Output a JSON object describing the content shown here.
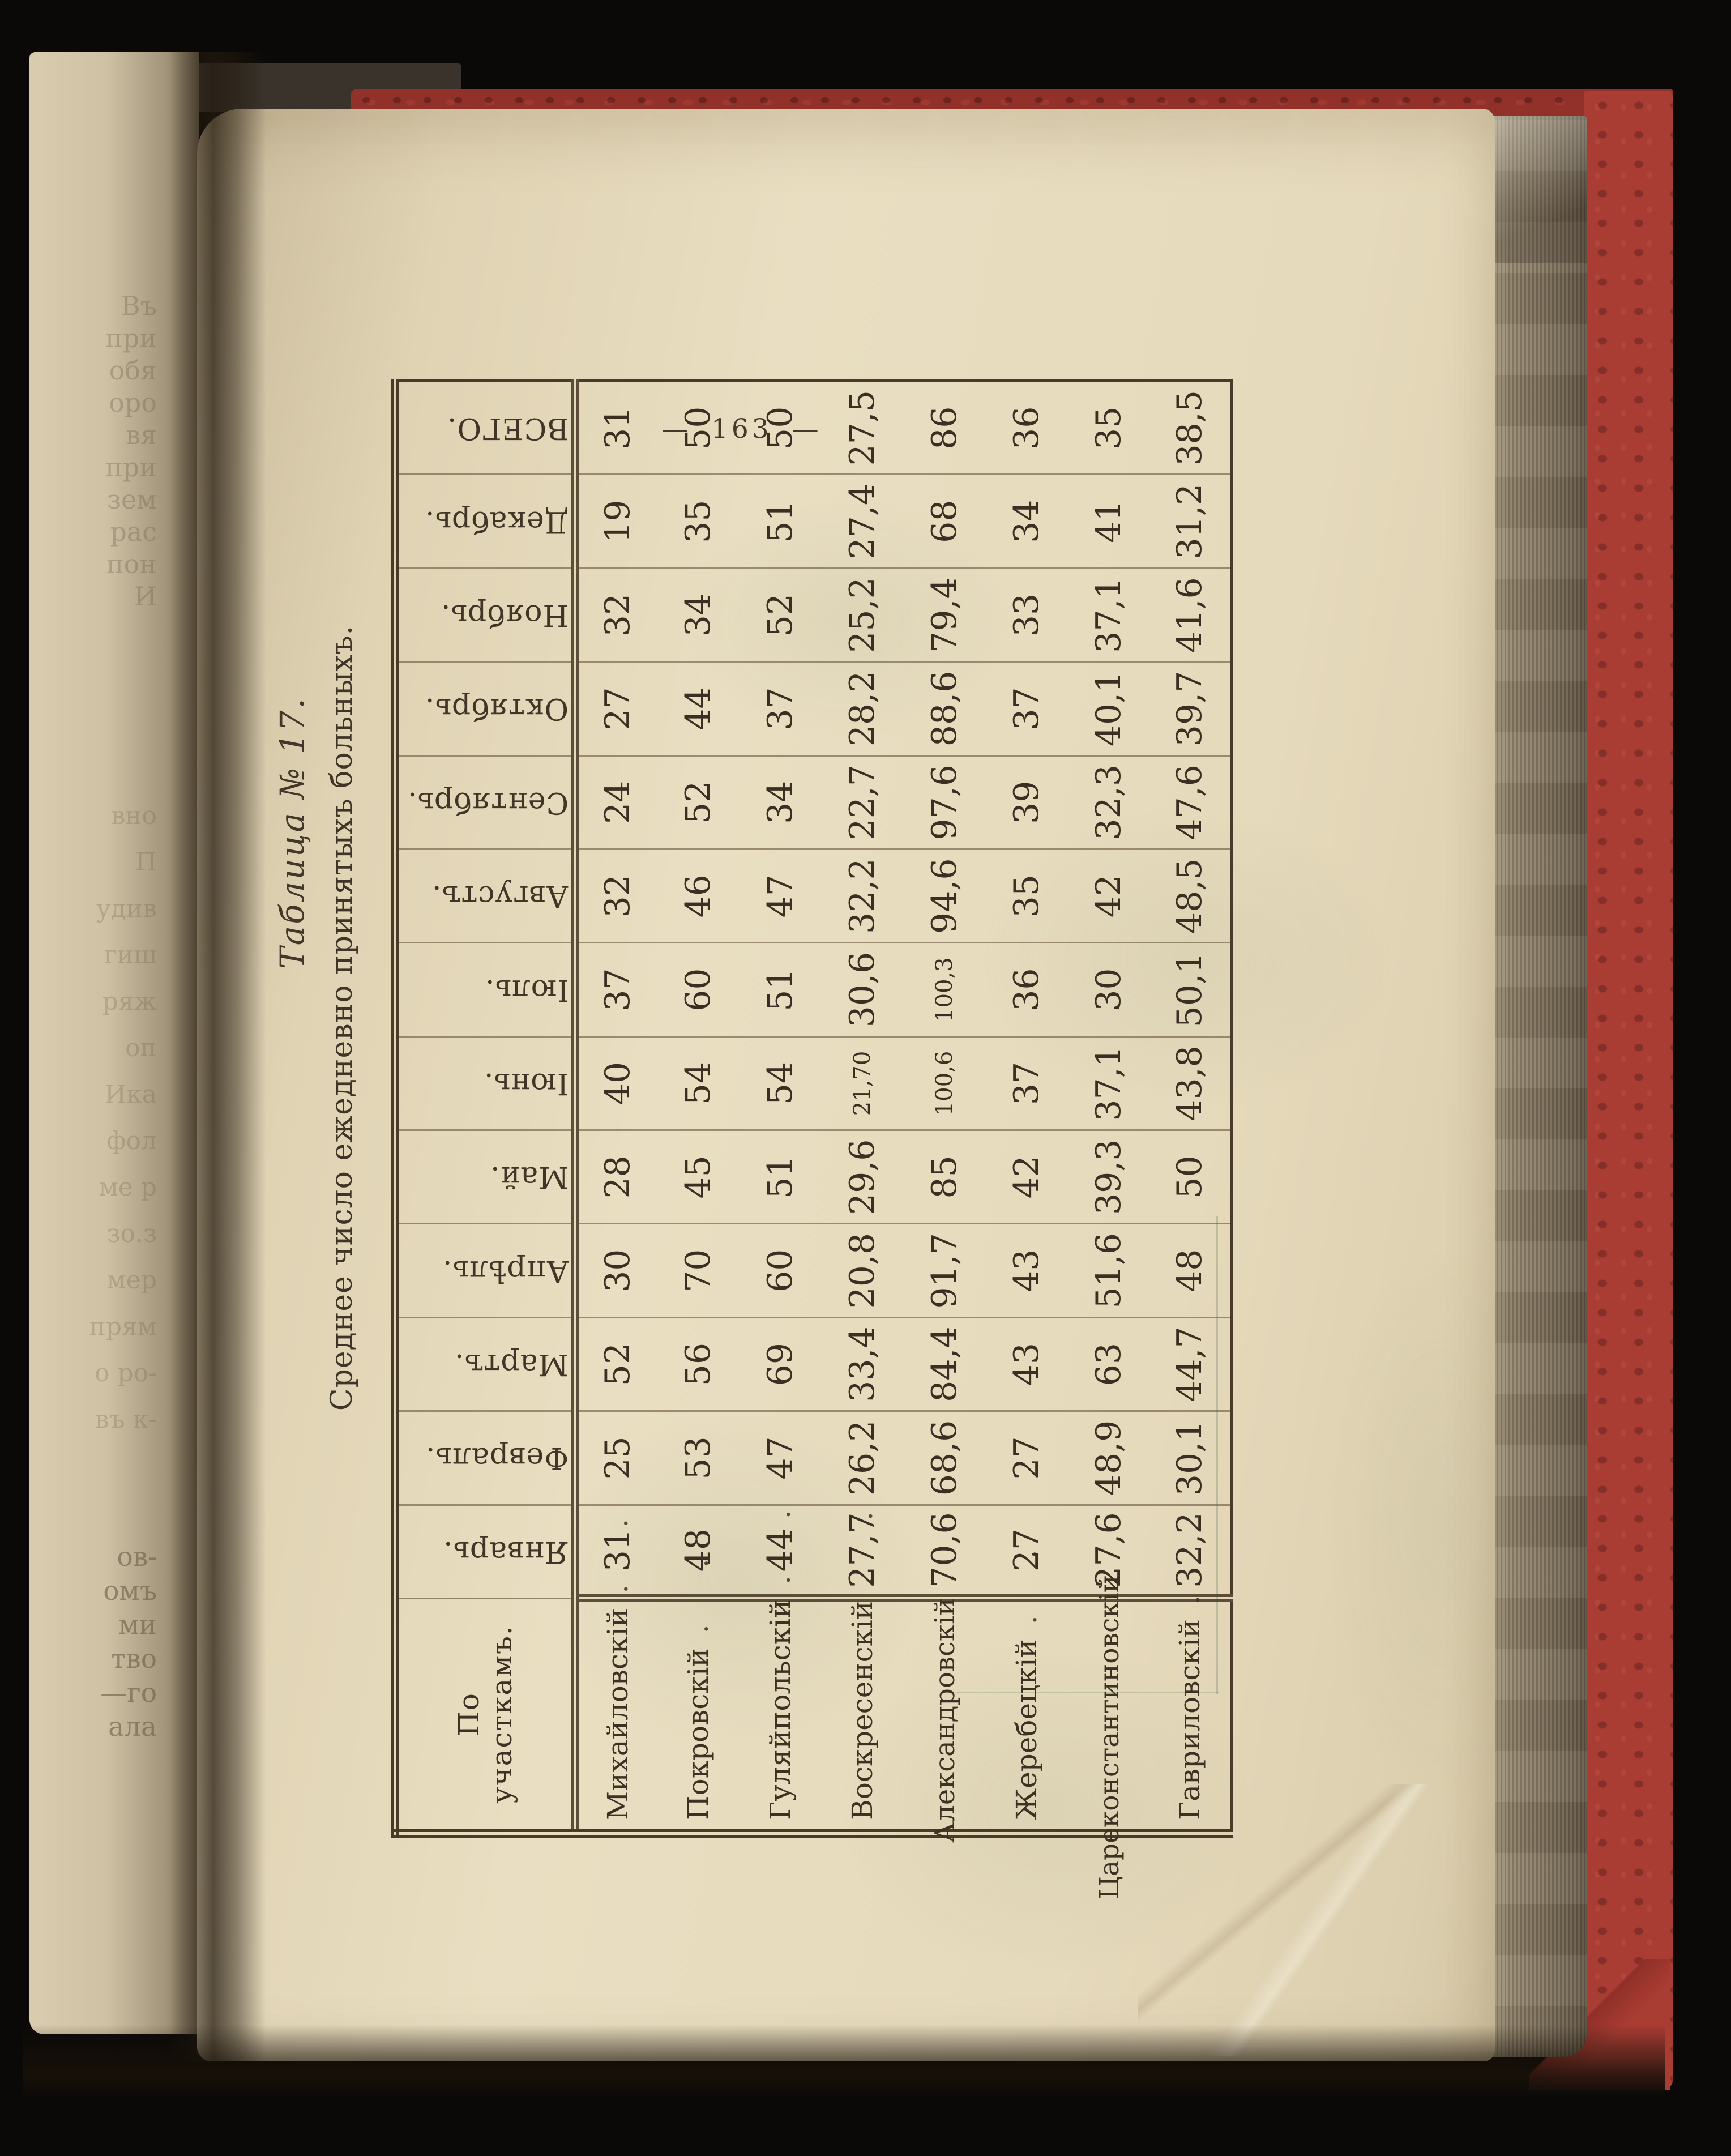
{
  "page": {
    "number_display": "— 163 —",
    "table_caption": "Таблица № 17.",
    "table_subtitle": "Среднее число ежедневно принятыхъ больныхъ."
  },
  "table": {
    "corner_header": "По участкамъ.",
    "month_columns": [
      "Январь.",
      "Февраль.",
      "Мартъ.",
      "Апрѣль.",
      "Май.",
      "Іюнь.",
      "Іюль.",
      "Августъ.",
      "Сентябрь.",
      "Октябрь.",
      "Ноябрь.",
      "Декабрь.",
      "ВСЕГО."
    ],
    "rows": [
      {
        "district": "Михайловскій",
        "leader": ". .",
        "values": [
          "31",
          "25",
          "52",
          "30",
          "28",
          "40",
          "37",
          "32",
          "24",
          "27",
          "32",
          "19",
          "31"
        ]
      },
      {
        "district": "Покровскій",
        "leader": ". .",
        "values": [
          "48",
          "53",
          "56",
          "70",
          "45",
          "54",
          "60",
          "46",
          "52",
          "44",
          "34",
          "35",
          "50"
        ]
      },
      {
        "district": "Гуляйпольскій",
        "leader": ". .",
        "values": [
          "44",
          "47",
          "69",
          "60",
          "51",
          "54",
          "51",
          "47",
          "34",
          "37",
          "52",
          "51",
          "50"
        ]
      },
      {
        "district": "Воскресенскій",
        "leader": ". .",
        "values": [
          "27,7",
          "26,2",
          "33,4",
          "20,8",
          "29,6",
          "21,70",
          "30,6",
          "32,2",
          "22,7",
          "28,2",
          "25,2",
          "27,4",
          "27,5"
        ]
      },
      {
        "district": "Александровскій",
        "leader": ".",
        "values": [
          "70,6",
          "68,6",
          "84,4",
          "91,7",
          "85",
          "100,6",
          "100,3",
          "94,6",
          "97,6",
          "88,6",
          "79,4",
          "68",
          "86"
        ]
      },
      {
        "district": "Жеребецкій",
        "leader": ". .",
        "values": [
          "27",
          "27",
          "43",
          "43",
          "42",
          "37",
          "36",
          "35",
          "39",
          "37",
          "33",
          "34",
          "36"
        ]
      },
      {
        "district": "Цареконстантиновскій",
        "leader": "",
        "values": [
          "27,6",
          "48,9",
          "63",
          "51,6",
          "39,3",
          "37,1",
          "30",
          "42",
          "32,3",
          "40,1",
          "37,1",
          "41",
          "35"
        ]
      },
      {
        "district": "Гавриловскій",
        "leader": ".",
        "values": [
          "32,2",
          "30,1",
          "44,7",
          "48",
          "50",
          "43,8",
          "50,1",
          "48,5",
          "47,6",
          "39,7",
          "41,6",
          "31,2",
          "38,5"
        ]
      }
    ]
  },
  "adjacent_page": {
    "upper_fragments": [
      "Въ",
      "при",
      "обя",
      "оро",
      "вя",
      "при",
      "зем",
      "рас",
      "пон",
      "И"
    ],
    "middle_fragments": [
      "вно",
      "П",
      "удив",
      "гиш",
      "ряж",
      "оп",
      "Ика",
      "фол",
      "ме р",
      "зо.з",
      "мер",
      "прям",
      "о ро-",
      "въ к-"
    ],
    "lower_fragments": [
      "ов-",
      "омъ",
      "ми",
      "тво",
      "—го",
      "ала"
    ]
  },
  "colors": {
    "cover_red": "#a93c33",
    "paper": "#e6dabc",
    "ink": "#3c3122",
    "page_edge_grey": "#887a64",
    "rule": "#4a3b28"
  }
}
